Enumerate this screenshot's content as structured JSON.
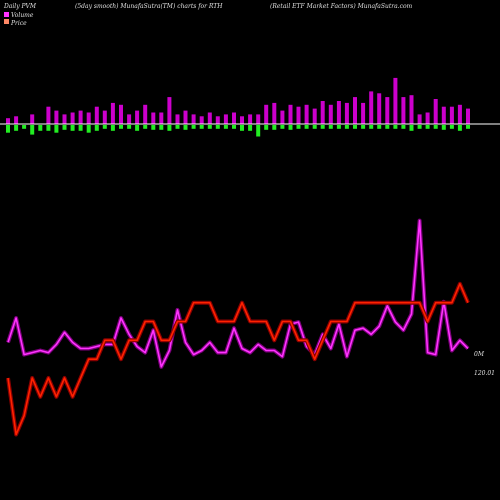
{
  "header": {
    "left": "Daily PVM",
    "center_left": "(5day smooth) MunafaSutra(TM) charts for RTH",
    "right": "(Retail ETF Market Factors) MunafaSutra.com"
  },
  "legend": [
    {
      "label": "Volume",
      "color": "#ff33ff"
    },
    {
      "label": "Price",
      "color": "#ff8866"
    }
  ],
  "annotations": {
    "pvm_label": "0M",
    "price_label": "120.01"
  },
  "colors": {
    "background": "#000000",
    "bar_up": "#cc00cc",
    "bar_down": "#22ee22",
    "baseline": "#ffffff",
    "pvm_line": "#ff33ff",
    "pvm_shadow": "#7a007a",
    "price_line": "#ff2200",
    "price_shadow": "#880000"
  },
  "chart_data": {
    "type": "line",
    "title": "Daily PVM",
    "subtitle": "(5day smooth) MunafaSutra(TM) charts for RTH",
    "legend_position": "top-left",
    "grid": false,
    "x": [
      1,
      2,
      3,
      4,
      5,
      6,
      7,
      8,
      9,
      10,
      11,
      12,
      13,
      14,
      15,
      16,
      17,
      18,
      19,
      20,
      21,
      22,
      23,
      24,
      25,
      26,
      27,
      28,
      29,
      30,
      31,
      32,
      33,
      34,
      35,
      36,
      37,
      38,
      39,
      40,
      41,
      42,
      43,
      44,
      45,
      46,
      47,
      48,
      49,
      50,
      51,
      52,
      53,
      54,
      55,
      56,
      57,
      58
    ],
    "volume_bars": {
      "up": [
        6,
        8,
        0,
        10,
        0,
        18,
        14,
        10,
        12,
        14,
        12,
        18,
        14,
        22,
        20,
        10,
        14,
        20,
        12,
        12,
        28,
        10,
        14,
        10,
        8,
        12,
        8,
        10,
        12,
        8,
        10,
        10,
        20,
        22,
        14,
        20,
        18,
        20,
        16,
        24,
        20,
        24,
        22,
        28,
        22,
        34,
        32,
        28,
        48,
        28,
        30,
        10,
        12,
        26,
        18,
        18,
        20,
        16
      ],
      "down": [
        8,
        6,
        4,
        10,
        6,
        6,
        8,
        5,
        6,
        6,
        8,
        6,
        4,
        6,
        4,
        4,
        6,
        4,
        5,
        5,
        6,
        4,
        5,
        4,
        4,
        4,
        4,
        4,
        4,
        6,
        6,
        12,
        5,
        5,
        4,
        5,
        4,
        4,
        4,
        4,
        4,
        4,
        4,
        4,
        4,
        4,
        4,
        4,
        4,
        4,
        6,
        4,
        4,
        4,
        5,
        4,
        6,
        4
      ],
      "ylim": [
        -20,
        50
      ]
    },
    "series": [
      {
        "name": "Volume",
        "values": [
          20,
          32,
          14,
          15,
          16,
          15,
          19,
          25,
          20,
          17,
          17,
          18,
          19,
          19,
          32,
          24,
          18,
          15,
          26,
          8,
          16,
          36,
          20,
          14,
          16,
          20,
          15,
          15,
          27,
          17,
          15,
          19,
          16,
          16,
          13,
          29,
          30,
          18,
          14,
          24,
          17,
          29,
          13,
          26,
          27,
          24,
          28,
          38,
          30,
          26,
          34,
          80,
          15,
          14,
          40,
          16,
          21,
          17
        ],
        "ylim": [
          0,
          100
        ]
      },
      {
        "name": "Price",
        "values": [
          100,
          97,
          98,
          100,
          99,
          100,
          99,
          100,
          99,
          100,
          101,
          101,
          102,
          102,
          101,
          102,
          102,
          103,
          103,
          102,
          102,
          103,
          103,
          104,
          104,
          104,
          103,
          103,
          103,
          104,
          103,
          103,
          103,
          102,
          103,
          103,
          102,
          102,
          101,
          102,
          103,
          103,
          103,
          104,
          104,
          104,
          104,
          104,
          104,
          104,
          104,
          104,
          103,
          104,
          104,
          104,
          105,
          104
        ],
        "ylim": [
          94,
          106
        ]
      }
    ]
  }
}
